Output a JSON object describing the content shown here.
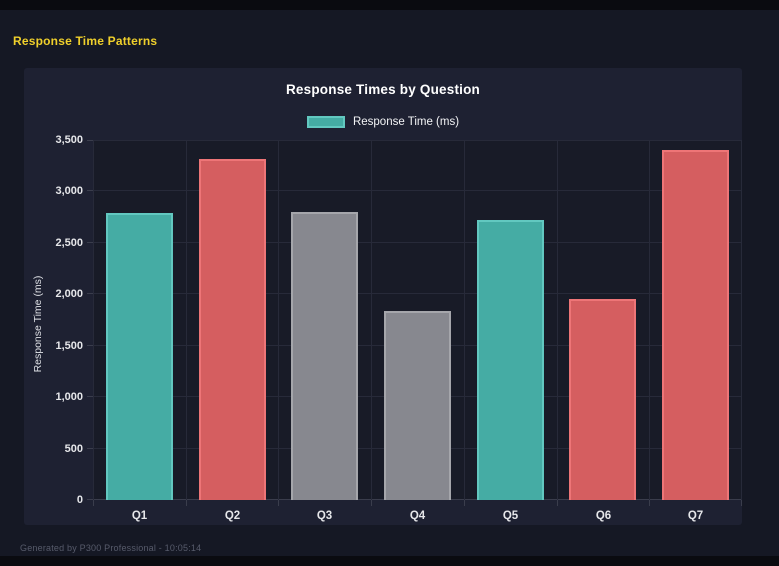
{
  "window": {
    "header_title": "Response Time Patterns"
  },
  "footer": {
    "text": "Generated by P300 Professional - 10:05:14"
  },
  "colors": {
    "page_bg": "#151824",
    "topbar_bg": "#0a0b10",
    "card_bg": "#1e2132",
    "plot_bg": "#181b27",
    "header_title": "#f0d02b",
    "chart_title": "#ffffff",
    "grid": "#272a39",
    "axis": "#3a3d4c",
    "tick_label": "#e6e7ea",
    "footer_text": "#575b6b",
    "teal_fill": "#45aca4",
    "teal_border": "#62c8c0",
    "red_fill": "#d55e60",
    "red_border": "#ee7577",
    "gray_fill": "#87888f",
    "gray_border": "#a5a6ab"
  },
  "chart_data": {
    "type": "bar",
    "title": "Response Times by Question",
    "legend": [
      {
        "label": "Response Time (ms)",
        "color": "teal",
        "position": "top"
      }
    ],
    "categories": [
      "Q1",
      "Q2",
      "Q3",
      "Q4",
      "Q5",
      "Q6",
      "Q7"
    ],
    "values": [
      2790,
      3320,
      2800,
      1840,
      2720,
      1950,
      3400
    ],
    "bar_colors": [
      "teal",
      "red",
      "gray",
      "gray",
      "teal",
      "red",
      "red"
    ],
    "xlabel": "",
    "ylabel": "Response Time (ms)",
    "ylim": [
      0,
      3500
    ],
    "ytick_step": 500,
    "ytick_labels": [
      "0",
      "500",
      "1,000",
      "1,500",
      "2,000",
      "2,500",
      "3,000",
      "3,500"
    ],
    "grid": true
  }
}
